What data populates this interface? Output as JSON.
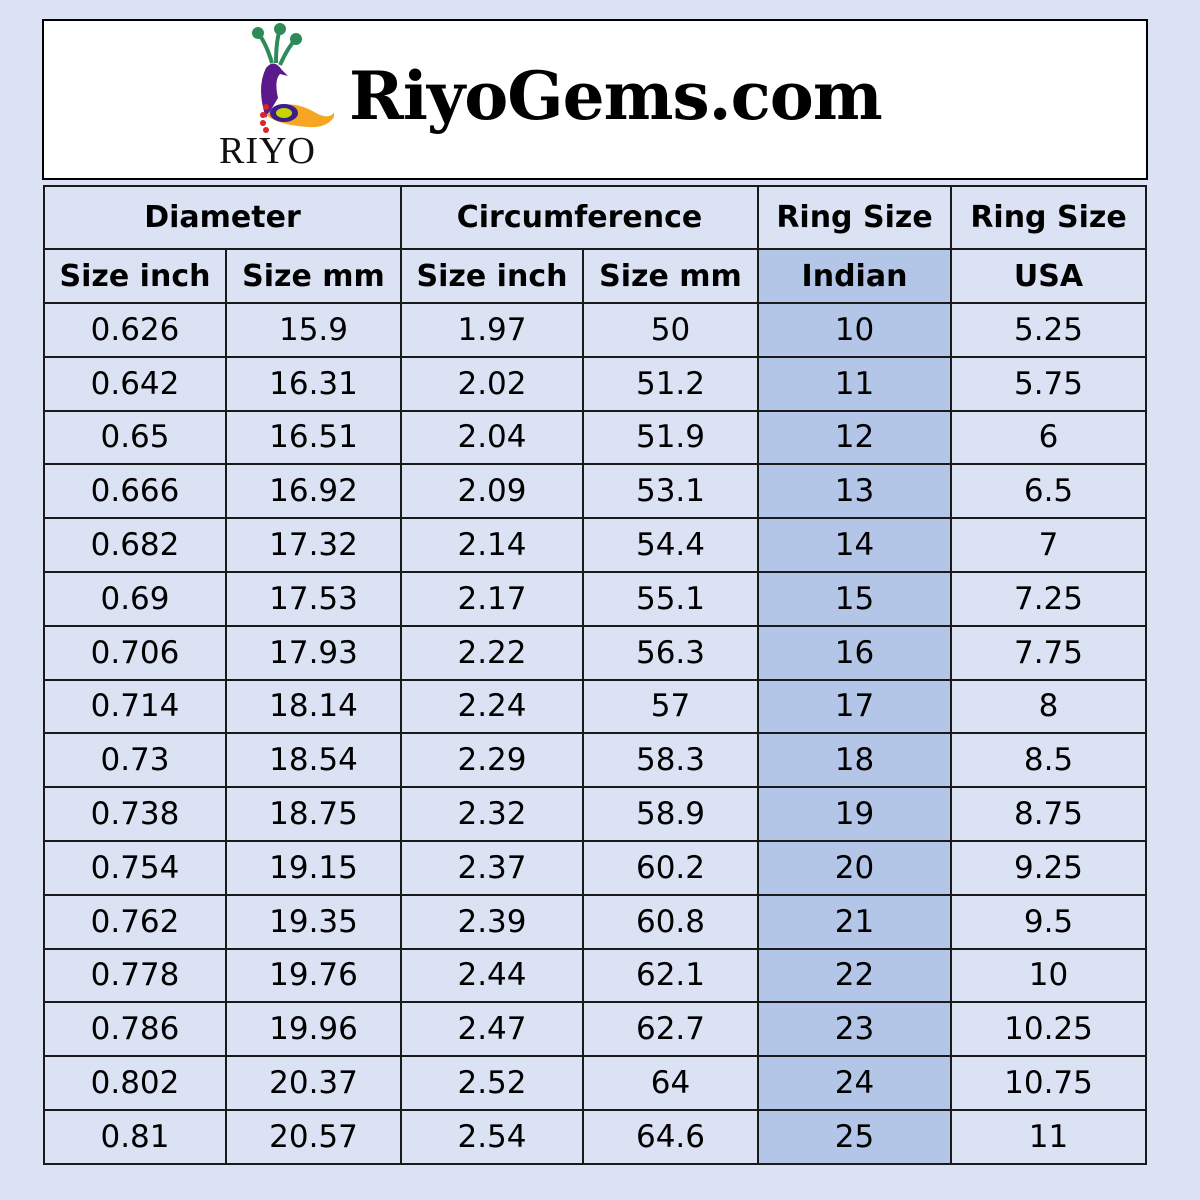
{
  "brand": {
    "logo_text": "RIYO",
    "title": "RiyoGems.com",
    "logo_icon": "peacock-icon"
  },
  "colors": {
    "background": "#dbe2f3",
    "highlight": "#b4c6e7"
  },
  "table": {
    "group_headers": [
      "Diameter",
      "Circumference",
      "Ring Size",
      "Ring Size"
    ],
    "sub_headers": [
      "Size inch",
      "Size mm",
      "Size inch",
      "Size mm",
      "Indian",
      "USA"
    ],
    "rows": [
      [
        "0.626",
        "15.9",
        "1.97",
        "50",
        "10",
        "5.25"
      ],
      [
        "0.642",
        "16.31",
        "2.02",
        "51.2",
        "11",
        "5.75"
      ],
      [
        "0.65",
        "16.51",
        "2.04",
        "51.9",
        "12",
        "6"
      ],
      [
        "0.666",
        "16.92",
        "2.09",
        "53.1",
        "13",
        "6.5"
      ],
      [
        "0.682",
        "17.32",
        "2.14",
        "54.4",
        "14",
        "7"
      ],
      [
        "0.69",
        "17.53",
        "2.17",
        "55.1",
        "15",
        "7.25"
      ],
      [
        "0.706",
        "17.93",
        "2.22",
        "56.3",
        "16",
        "7.75"
      ],
      [
        "0.714",
        "18.14",
        "2.24",
        "57",
        "17",
        "8"
      ],
      [
        "0.73",
        "18.54",
        "2.29",
        "58.3",
        "18",
        "8.5"
      ],
      [
        "0.738",
        "18.75",
        "2.32",
        "58.9",
        "19",
        "8.75"
      ],
      [
        "0.754",
        "19.15",
        "2.37",
        "60.2",
        "20",
        "9.25"
      ],
      [
        "0.762",
        "19.35",
        "2.39",
        "60.8",
        "21",
        "9.5"
      ],
      [
        "0.778",
        "19.76",
        "2.44",
        "62.1",
        "22",
        "10"
      ],
      [
        "0.786",
        "19.96",
        "2.47",
        "62.7",
        "23",
        "10.25"
      ],
      [
        "0.802",
        "20.37",
        "2.52",
        "64",
        "24",
        "10.75"
      ],
      [
        "0.81",
        "20.57",
        "2.54",
        "64.6",
        "25",
        "11"
      ]
    ]
  }
}
